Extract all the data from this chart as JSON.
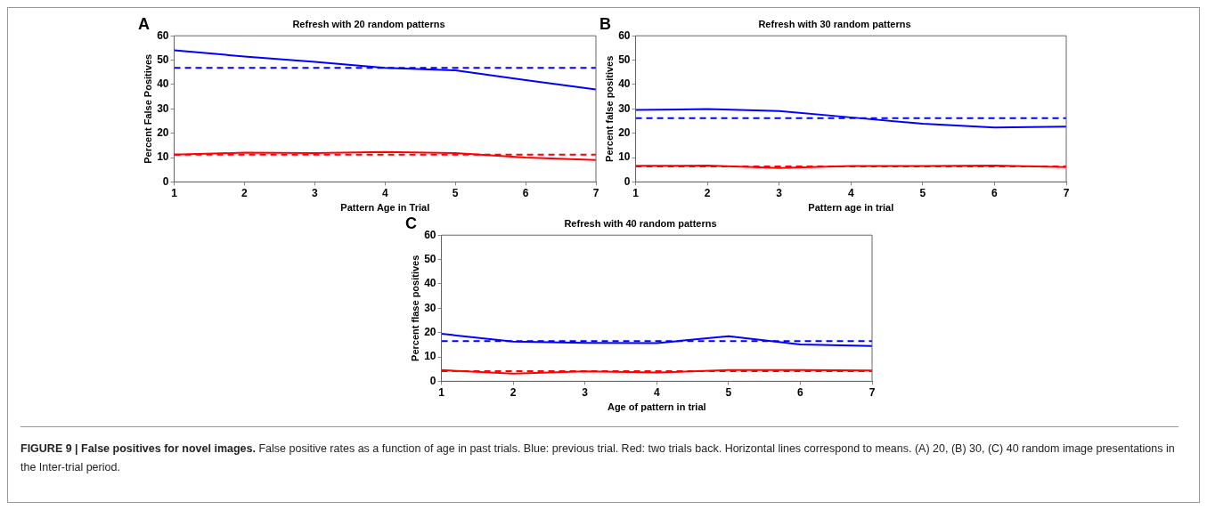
{
  "chart_data": [
    {
      "type": "line",
      "title": "Refresh with 20 random patterns",
      "xlabel": "Pattern Age in Trial",
      "ylabel": "Percent False Positives",
      "x": [
        1,
        2,
        3,
        4,
        5,
        6,
        7
      ],
      "xlim": [
        1,
        7
      ],
      "xticks": [
        1,
        2,
        3,
        4,
        5,
        6,
        7
      ],
      "ylim": [
        0,
        60
      ],
      "yticks": [
        0,
        10,
        20,
        30,
        40,
        50,
        60
      ],
      "grid": false,
      "legend": false,
      "marker": "none",
      "line_style": "solid",
      "annotations": [
        "A"
      ],
      "series": [
        {
          "color": "#0000ff",
          "values": [
            54,
            51.5,
            49.3,
            46.8,
            45.8,
            41.8,
            38
          ]
        },
        {
          "color": "#ff0000",
          "values": [
            11.2,
            12,
            11.8,
            12.3,
            11.8,
            10,
            9
          ]
        }
      ],
      "ref_lines": [
        {
          "axis": "y",
          "value": 46.8,
          "color": "#0000ff",
          "line_style": "dashed"
        },
        {
          "axis": "y",
          "value": 11.2,
          "color": "#ff0000",
          "line_style": "dashed"
        }
      ]
    },
    {
      "type": "line",
      "title": "Refresh with 30 random patterns",
      "xlabel": "Pattern age in trial",
      "ylabel": "Percent false positives",
      "x": [
        1,
        2,
        3,
        4,
        5,
        6,
        7
      ],
      "xlim": [
        1,
        7
      ],
      "xticks": [
        1,
        2,
        3,
        4,
        5,
        6,
        7
      ],
      "ylim": [
        0,
        60
      ],
      "yticks": [
        0,
        10,
        20,
        30,
        40,
        50,
        60
      ],
      "grid": false,
      "legend": false,
      "marker": "none",
      "line_style": "solid",
      "annotations": [
        "B"
      ],
      "series": [
        {
          "color": "#0000ff",
          "values": [
            29.6,
            29.9,
            29.1,
            26.5,
            23.9,
            22.3,
            22.7
          ]
        },
        {
          "color": "#ff0000",
          "values": [
            6.6,
            6.7,
            5.7,
            6.5,
            6.5,
            6.7,
            6.1
          ]
        }
      ],
      "ref_lines": [
        {
          "axis": "y",
          "value": 26.2,
          "color": "#0000ff",
          "line_style": "dashed"
        },
        {
          "axis": "y",
          "value": 6.4,
          "color": "#ff0000",
          "line_style": "dashed"
        }
      ]
    },
    {
      "type": "line",
      "title": "Refresh with 40 random patterns",
      "xlabel": "Age of pattern in trial",
      "ylabel": "Percent flase positives",
      "x": [
        1,
        2,
        3,
        4,
        5,
        6,
        7
      ],
      "xlim": [
        1,
        7
      ],
      "xticks": [
        1,
        2,
        3,
        4,
        5,
        6,
        7
      ],
      "ylim": [
        0,
        60
      ],
      "yticks": [
        0,
        10,
        20,
        30,
        40,
        50,
        60
      ],
      "grid": false,
      "legend": false,
      "marker": "none",
      "line_style": "solid",
      "annotations": [
        "C",
        "FIGURE 9 | False positives for novel images.",
        "False positive rates as a function of age in past trials. Blue: previous trial. Red: two trials back. Horizontal lines correspond to means. (A) 20, (B) 30, (C) 40 random image presentations in the Inter-trial period."
      ],
      "series": [
        {
          "color": "#0000ff",
          "values": [
            19.5,
            16.3,
            15.8,
            15.7,
            18.5,
            15.1,
            14.5
          ]
        },
        {
          "color": "#ff0000",
          "values": [
            4.6,
            3.2,
            4.1,
            3.6,
            4.6,
            4.6,
            4.4
          ]
        }
      ],
      "ref_lines": [
        {
          "axis": "y",
          "value": 16.5,
          "color": "#0000ff",
          "line_style": "dashed"
        },
        {
          "axis": "y",
          "value": 4.2,
          "color": "#ff0000",
          "line_style": "dashed"
        }
      ]
    }
  ]
}
